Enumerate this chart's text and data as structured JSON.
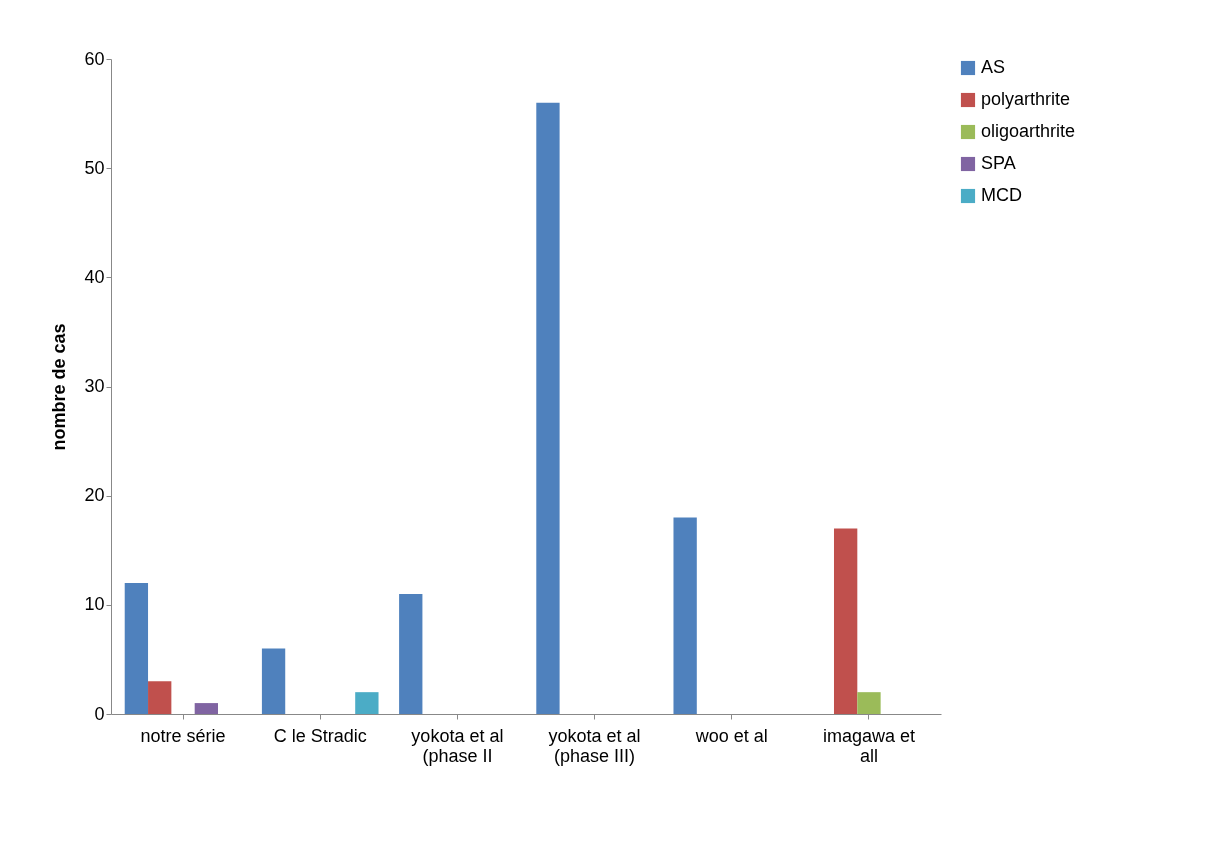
{
  "chart_data": {
    "type": "bar",
    "ylabel": "nombre de cas",
    "categories": [
      "notre série",
      "C le Stradic",
      "yokota et al (phase II",
      "yokota et al (phase III)",
      "woo et al",
      "imagawa et all"
    ],
    "series": [
      {
        "name": "AS",
        "color": "#4f81bd",
        "values": [
          12,
          6,
          11,
          56,
          18,
          0
        ]
      },
      {
        "name": "polyarthrite",
        "color": "#c0504d",
        "values": [
          3,
          0,
          0,
          0,
          0,
          17
        ]
      },
      {
        "name": "oligoarthrite",
        "color": "#9bbb59",
        "values": [
          0,
          0,
          0,
          0,
          0,
          2
        ]
      },
      {
        "name": "SPA",
        "color": "#8064a2",
        "values": [
          1,
          0,
          0,
          0,
          0,
          0
        ]
      },
      {
        "name": "MCD",
        "color": "#4bacc6",
        "values": [
          0,
          2,
          0,
          0,
          0,
          0
        ]
      }
    ],
    "ylim": [
      0,
      60
    ],
    "yticks": [
      0,
      10,
      20,
      30,
      40,
      50,
      60
    ],
    "grid": false,
    "legend": "right"
  }
}
